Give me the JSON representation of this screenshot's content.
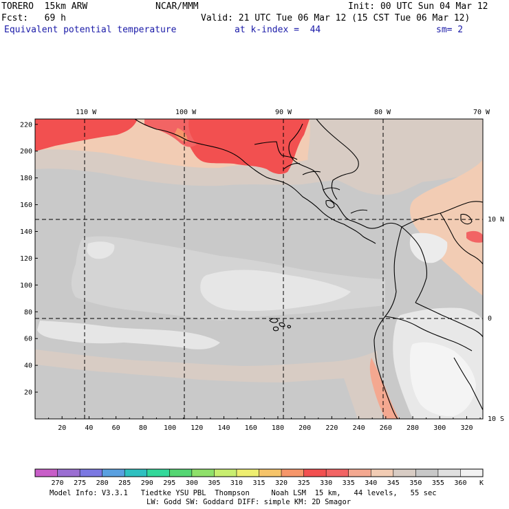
{
  "header": {
    "model": "TORERO  15km ARW",
    "org": "NCAR/MMM",
    "init": "Init: 00 UTC Sun 04 Mar 12",
    "fcst": "Fcst:   69 h",
    "valid": "Valid: 21 UTC Tue 06 Mar 12 (15 CST Tue 06 Mar 12)",
    "field": "Equivalent potential temperature",
    "level": "at k-index =  44",
    "smoothing": "sm= 2"
  },
  "map": {
    "top_lon_labels": [
      "110 W",
      "100 W",
      "90 W",
      "80 W",
      "70 W"
    ],
    "right_lat_labels": [
      "10 N",
      "0",
      "10 S"
    ],
    "left_grid_labels": [
      "220",
      "200",
      "180",
      "160",
      "140",
      "120",
      "100",
      "80",
      "60",
      "40",
      "20"
    ],
    "bottom_grid_labels": [
      "20",
      "40",
      "60",
      "80",
      "100",
      "120",
      "140",
      "160",
      "180",
      "200",
      "220",
      "240",
      "260",
      "280",
      "300",
      "320"
    ],
    "x_range": [
      0,
      332
    ],
    "y_range": [
      0,
      224
    ],
    "gridline_lons": [
      -110,
      -100,
      -90,
      -80
    ],
    "gridline_lats": [
      10,
      0
    ],
    "grid_line_style": "dashed",
    "land_outline_color": "#000000"
  },
  "colorbar": {
    "labels": [
      "270",
      "275",
      "280",
      "285",
      "290",
      "295",
      "300",
      "305",
      "310",
      "315",
      "320",
      "325",
      "330",
      "335",
      "340",
      "345",
      "350",
      "355",
      "360"
    ],
    "unit": "K",
    "colors": [
      "#c85ec8",
      "#9b6ed2",
      "#7b78e2",
      "#5aa0e0",
      "#2fc0c0",
      "#33d89a",
      "#55d673",
      "#8fe06a",
      "#c8ee70",
      "#eeee70",
      "#f6c46a",
      "#f6966a",
      "#f25050",
      "#f26464",
      "#f4a890",
      "#f2ccb4",
      "#d8ccc4",
      "#c8c8c8",
      "#e0e0e0",
      "#f2f2f2"
    ]
  },
  "model_info": {
    "line1": "Model Info: V3.3.1   Tiedtke YSU PBL  Thompson     Noah LSM  15 km,   44 levels,   55 sec",
    "line2": "LW: Godd SW: Goddard DIFF: simple KM: 2D Smagor"
  }
}
